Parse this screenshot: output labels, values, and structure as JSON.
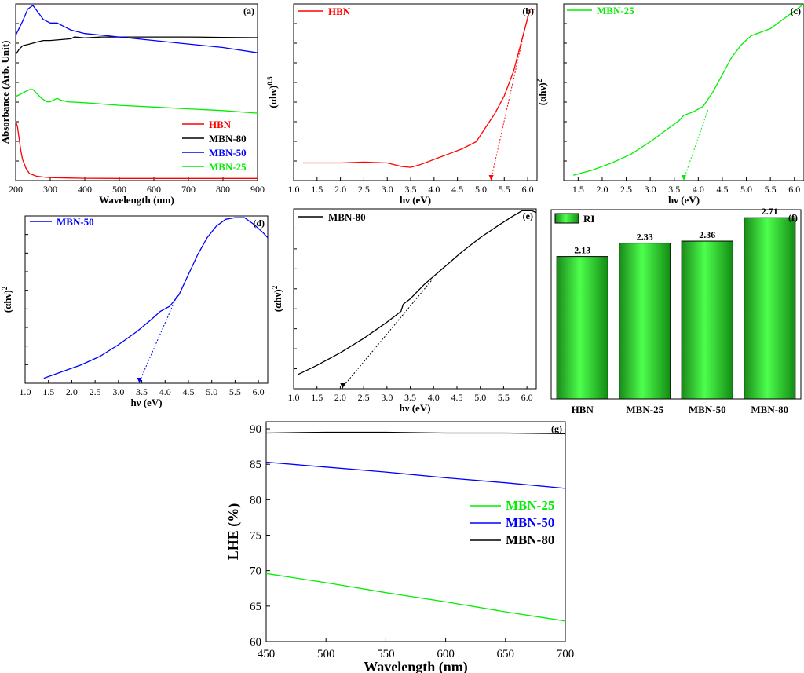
{
  "colors": {
    "HBN": "#ff0000",
    "MBN-80": "#000000",
    "MBN-50": "#0000ff",
    "MBN-25": "#00ee00"
  },
  "chart_data": [
    {
      "id": "a",
      "panel_label": "(a)",
      "type": "line",
      "title": "",
      "xlabel": "Wavelength (nm)",
      "ylabel": "Absorbance (Arb. Unit)",
      "xlim": [
        200,
        900
      ],
      "ylim": [
        0,
        1
      ],
      "xticks": [
        "200",
        "300",
        "400",
        "500",
        "600",
        "700",
        "800",
        "900"
      ],
      "legend_position": "bottom-right",
      "legend": [
        "HBN",
        "MBN-80",
        "MBN-50",
        "MBN-25"
      ],
      "series": [
        {
          "name": "HBN",
          "color": "#ff0000",
          "x": [
            200,
            205,
            210,
            215,
            220,
            230,
            240,
            260,
            280,
            300,
            350,
            400,
            500,
            600,
            700,
            800,
            900
          ],
          "y": [
            0.34,
            0.31,
            0.24,
            0.17,
            0.12,
            0.07,
            0.04,
            0.025,
            0.02,
            0.017,
            0.015,
            0.013,
            0.012,
            0.012,
            0.012,
            0.012,
            0.012
          ]
        },
        {
          "name": "MBN-80",
          "color": "#000000",
          "x": [
            200,
            210,
            220,
            240,
            260,
            280,
            300,
            330,
            360,
            370,
            400,
            450,
            500,
            600,
            700,
            800,
            900
          ],
          "y": [
            0.72,
            0.75,
            0.77,
            0.78,
            0.79,
            0.8,
            0.8,
            0.805,
            0.81,
            0.82,
            0.815,
            0.82,
            0.82,
            0.82,
            0.82,
            0.818,
            0.816
          ]
        },
        {
          "name": "MBN-50",
          "color": "#0000ff",
          "x": [
            200,
            220,
            235,
            250,
            265,
            280,
            300,
            320,
            340,
            360,
            400,
            450,
            500,
            600,
            700,
            800,
            900
          ],
          "y": [
            0.83,
            0.91,
            0.98,
            1.0,
            0.96,
            0.92,
            0.9,
            0.9,
            0.88,
            0.86,
            0.84,
            0.83,
            0.82,
            0.8,
            0.78,
            0.76,
            0.73
          ]
        },
        {
          "name": "MBN-25",
          "color": "#00ee00",
          "x": [
            200,
            220,
            240,
            250,
            260,
            275,
            290,
            300,
            320,
            330,
            350,
            400,
            500,
            600,
            700,
            800,
            900
          ],
          "y": [
            0.48,
            0.5,
            0.52,
            0.52,
            0.5,
            0.47,
            0.45,
            0.45,
            0.47,
            0.46,
            0.45,
            0.445,
            0.43,
            0.42,
            0.41,
            0.4,
            0.385
          ]
        }
      ]
    },
    {
      "id": "b",
      "panel_label": "(b)",
      "type": "line",
      "title": "",
      "xlabel": "hν (eV)",
      "ylabel": "(αhν)0.5",
      "xlim": [
        1.0,
        6.2
      ],
      "ylim": [
        0,
        1
      ],
      "xticks": [
        "1.0",
        "1.5",
        "2.0",
        "2.5",
        "3.0",
        "3.5",
        "4.0",
        "4.5",
        "5.0",
        "5.5",
        "6.0"
      ],
      "legend_position": "top-left",
      "legend": [
        "HBN"
      ],
      "series": [
        {
          "name": "HBN",
          "color": "#ff0000",
          "x": [
            1.2,
            1.5,
            2.0,
            2.5,
            3.0,
            3.3,
            3.5,
            3.7,
            4.0,
            4.3,
            4.6,
            4.9,
            5.1,
            5.3,
            5.5,
            5.7,
            5.9,
            6.05,
            6.15
          ],
          "y": [
            0.1,
            0.1,
            0.1,
            0.105,
            0.1,
            0.08,
            0.075,
            0.09,
            0.12,
            0.15,
            0.18,
            0.22,
            0.3,
            0.38,
            0.48,
            0.62,
            0.82,
            0.97,
            0.97
          ]
        }
      ],
      "fit": {
        "color": "#ff0000",
        "x": [
          5.22,
          6.0
        ],
        "y": [
          0.0,
          0.93
        ]
      },
      "band_gap_eV": 5.2
    },
    {
      "id": "c",
      "panel_label": "(c)",
      "type": "line",
      "title": "",
      "xlabel": "hν (eV)",
      "ylabel": "(αhν)2",
      "xlim": [
        1.2,
        6.2
      ],
      "ylim": [
        0,
        1
      ],
      "xticks": [
        "1.5",
        "2.0",
        "2.5",
        "3.0",
        "3.5",
        "4.0",
        "4.5",
        "5.0",
        "5.5",
        "6.0"
      ],
      "legend_position": "top-left",
      "legend": [
        "MBN-25"
      ],
      "series": [
        {
          "name": "MBN-25",
          "color": "#00ee00",
          "x": [
            1.4,
            1.8,
            2.2,
            2.6,
            3.0,
            3.3,
            3.6,
            3.7,
            3.9,
            4.1,
            4.3,
            4.5,
            4.7,
            4.9,
            5.1,
            5.3,
            5.5,
            5.7,
            5.9,
            6.1,
            6.2
          ],
          "y": [
            0.03,
            0.06,
            0.1,
            0.15,
            0.22,
            0.28,
            0.34,
            0.37,
            0.39,
            0.42,
            0.5,
            0.6,
            0.7,
            0.77,
            0.82,
            0.84,
            0.86,
            0.9,
            0.94,
            0.98,
            1.0
          ]
        }
      ],
      "fit": {
        "color": "#00ee00",
        "x": [
          3.7,
          4.2
        ],
        "y": [
          0.0,
          0.4
        ]
      },
      "band_gap_eV": 3.7
    },
    {
      "id": "d",
      "panel_label": "(d)",
      "type": "line",
      "title": "",
      "xlabel": "hν (eV)",
      "ylabel": "(αhν)2",
      "xlim": [
        1.0,
        6.2
      ],
      "ylim": [
        0,
        1
      ],
      "xticks": [
        "1.0",
        "1.5",
        "2.0",
        "2.5",
        "3.0",
        "3.5",
        "4.0",
        "4.5",
        "5.0",
        "5.5",
        "6.0"
      ],
      "legend_position": "top-left",
      "legend": [
        "MBN-50"
      ],
      "series": [
        {
          "name": "MBN-50",
          "color": "#0000ff",
          "x": [
            1.4,
            1.8,
            2.2,
            2.6,
            3.0,
            3.4,
            3.7,
            3.9,
            4.1,
            4.3,
            4.5,
            4.7,
            4.9,
            5.1,
            5.3,
            5.5,
            5.7,
            5.9,
            6.1,
            6.2
          ],
          "y": [
            0.03,
            0.07,
            0.11,
            0.16,
            0.23,
            0.31,
            0.38,
            0.43,
            0.46,
            0.53,
            0.65,
            0.77,
            0.87,
            0.94,
            0.98,
            0.99,
            0.99,
            0.95,
            0.9,
            0.87
          ]
        }
      ],
      "fit": {
        "color": "#0000ff",
        "x": [
          3.45,
          4.25
        ],
        "y": [
          0.0,
          0.52
        ]
      },
      "band_gap_eV": 3.45
    },
    {
      "id": "e",
      "panel_label": "(e)",
      "type": "line",
      "title": "",
      "xlabel": "hν (eV)",
      "ylabel": "(αhν)2",
      "xlim": [
        1.0,
        6.2
      ],
      "ylim": [
        0,
        1
      ],
      "xticks": [
        "1.0",
        "1.5",
        "2.0",
        "2.5",
        "3.0",
        "3.5",
        "4.0",
        "4.5",
        "5.0",
        "5.5",
        "6.0"
      ],
      "legend_position": "top-left",
      "legend": [
        "MBN-80"
      ],
      "series": [
        {
          "name": "MBN-80",
          "color": "#000000",
          "x": [
            1.1,
            1.5,
            2.0,
            2.5,
            3.0,
            3.3,
            3.35,
            3.5,
            3.8,
            4.2,
            4.6,
            5.0,
            5.4,
            5.7,
            5.9,
            6.1,
            6.2
          ],
          "y": [
            0.08,
            0.13,
            0.2,
            0.28,
            0.37,
            0.43,
            0.47,
            0.5,
            0.58,
            0.67,
            0.76,
            0.84,
            0.91,
            0.96,
            0.99,
            0.99,
            0.98
          ]
        }
      ],
      "fit": {
        "color": "#000000",
        "x": [
          2.05,
          3.95
        ],
        "y": [
          0.0,
          0.6
        ]
      },
      "band_gap_eV": 2.05
    },
    {
      "id": "f",
      "panel_label": "(f)",
      "type": "bar",
      "title": "",
      "xlabel": "",
      "ylabel": "",
      "legend_position": "top-left",
      "legend": [
        "RI"
      ],
      "categories": [
        "HBN",
        "MBN-25",
        "MBN-50",
        "MBN-80"
      ],
      "values": [
        2.13,
        2.33,
        2.36,
        2.71
      ],
      "value_labels": [
        "2.13",
        "2.33",
        "2.36",
        "2.71"
      ],
      "ylim": [
        0,
        3.0
      ]
    },
    {
      "id": "g",
      "panel_label": "(g)",
      "type": "line",
      "title": "",
      "xlabel": "Wavelength (nm)",
      "ylabel": "LHE (%)",
      "xlim": [
        450,
        700
      ],
      "ylim": [
        60,
        91
      ],
      "xticks": [
        "450",
        "500",
        "550",
        "600",
        "650",
        "700"
      ],
      "yticks": [
        "60",
        "65",
        "70",
        "75",
        "80",
        "85",
        "90"
      ],
      "legend_position": "center-right",
      "legend": [
        "MBN-25",
        "MBN-50",
        "MBN-80"
      ],
      "series": [
        {
          "name": "MBN-25",
          "color": "#00ee00",
          "x": [
            450,
            500,
            550,
            600,
            650,
            700
          ],
          "y": [
            69.6,
            68.3,
            66.9,
            65.6,
            64.2,
            62.9
          ]
        },
        {
          "name": "MBN-50",
          "color": "#0000ff",
          "x": [
            450,
            500,
            550,
            600,
            650,
            700
          ],
          "y": [
            85.3,
            84.6,
            83.9,
            83.1,
            82.4,
            81.6
          ]
        },
        {
          "name": "MBN-80",
          "color": "#000000",
          "x": [
            450,
            500,
            550,
            600,
            650,
            700
          ],
          "y": [
            89.4,
            89.5,
            89.5,
            89.4,
            89.4,
            89.3
          ]
        }
      ]
    }
  ]
}
